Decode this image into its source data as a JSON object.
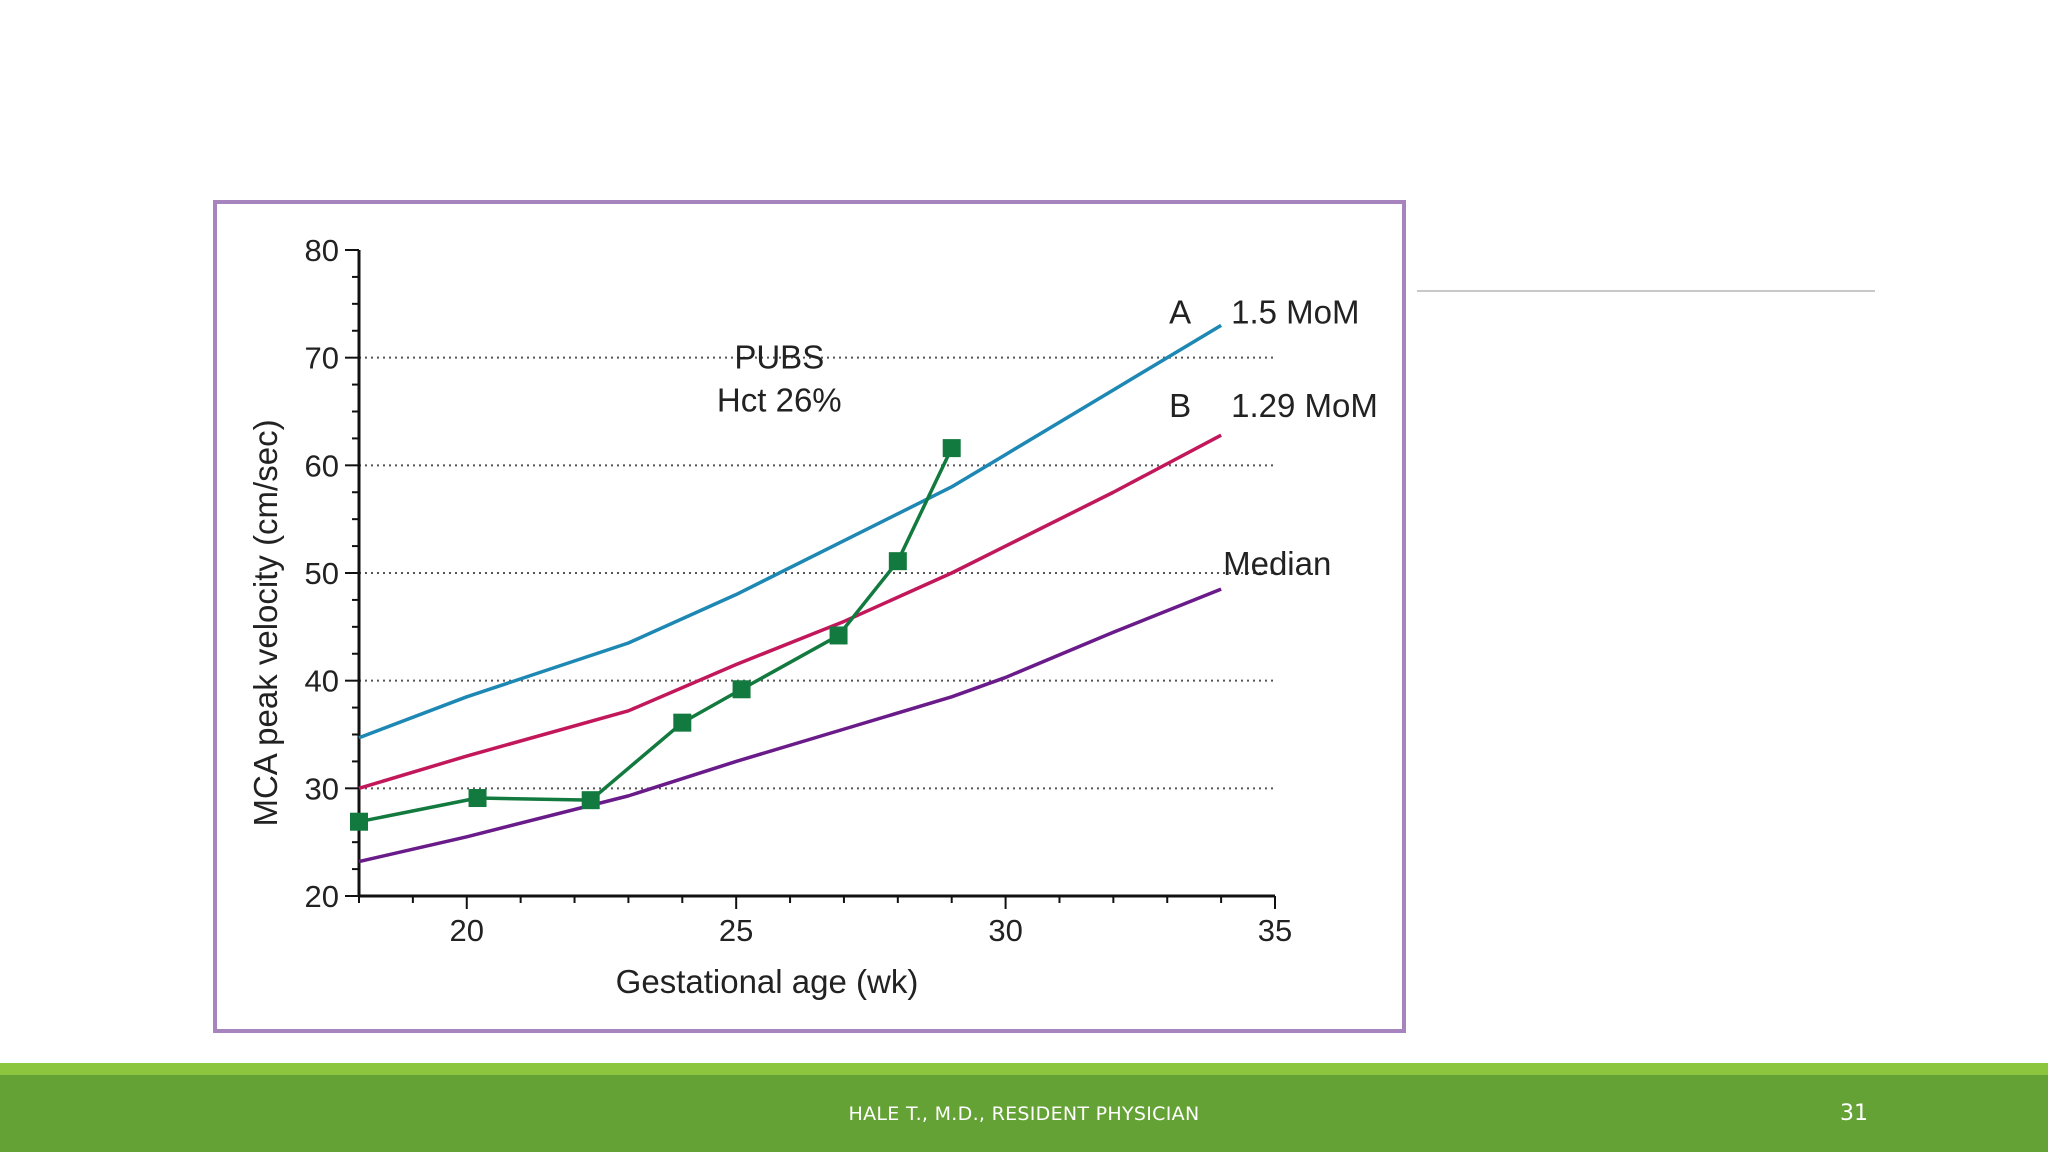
{
  "footer": {
    "presenter": "HALE T., M.D., RESIDENT PHYSICIAN",
    "slide_number": "31"
  },
  "colors": {
    "frame_border": "#a884bf",
    "footer_band": "#65a235",
    "footer_stripe": "#8cc63e",
    "curve_a": "#1e88b5",
    "curve_b": "#c2185b",
    "median": "#6a1b8a",
    "patient": "#137a3f"
  },
  "chart_data": {
    "type": "line",
    "title": "",
    "xlabel": "Gestational age (wk)",
    "ylabel": "MCA peak velocity (cm/sec)",
    "xlim": [
      18,
      35
    ],
    "ylim": [
      20,
      80
    ],
    "xticks": [
      20,
      25,
      30,
      35
    ],
    "yticks": [
      20,
      30,
      40,
      50,
      60,
      70,
      80
    ],
    "grid": {
      "horizontal_dotted_at": [
        30,
        40,
        50,
        60,
        70
      ]
    },
    "series": [
      {
        "name": "1.5 MoM",
        "letter": "A",
        "color": "#1e88b5",
        "x": [
          18,
          20,
          23,
          25,
          27,
          29,
          30,
          32,
          34
        ],
        "y": [
          34.7,
          38.5,
          43.5,
          48,
          53,
          58,
          61,
          67,
          73
        ]
      },
      {
        "name": "1.29 MoM",
        "letter": "B",
        "color": "#c2185b",
        "x": [
          18,
          20,
          23,
          25,
          27,
          29,
          30,
          32,
          34
        ],
        "y": [
          30,
          33,
          37.2,
          41.5,
          45.5,
          50,
          52.5,
          57.5,
          62.8
        ]
      },
      {
        "name": "Median",
        "letter": "",
        "color": "#6a1b8a",
        "x": [
          18,
          20,
          23,
          25,
          27,
          29,
          30,
          32,
          34
        ],
        "y": [
          23.2,
          25.5,
          29.3,
          32.5,
          35.5,
          38.5,
          40.3,
          44.5,
          48.5
        ]
      },
      {
        "name": "",
        "letter": "",
        "color": "#137a3f",
        "markers": "square",
        "x": [
          18,
          20.2,
          22.3,
          24,
          25.1,
          26.9,
          28,
          29
        ],
        "y": [
          26.9,
          29.1,
          28.9,
          36.1,
          39.2,
          44.2,
          51.1,
          61.6
        ]
      }
    ],
    "annotations": [
      {
        "text": "PUBS",
        "x": 25.8,
        "y": 70
      },
      {
        "text": "Hct 26%",
        "x": 25.8,
        "y": 66
      }
    ]
  }
}
